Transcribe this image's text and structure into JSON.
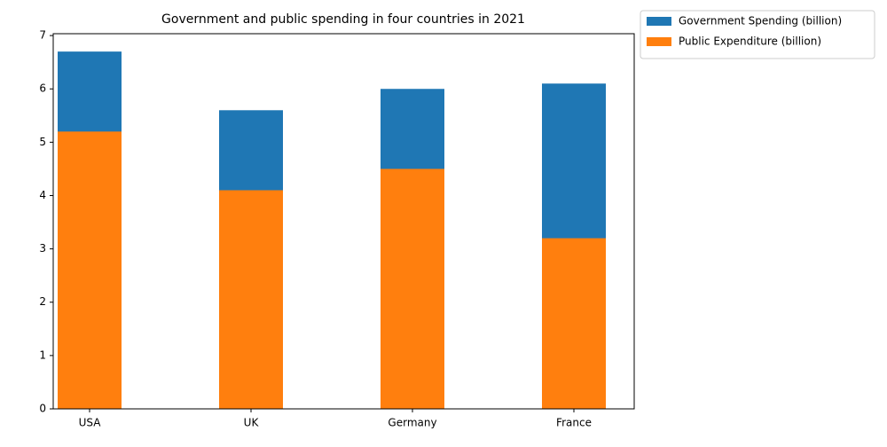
{
  "chart_data": {
    "type": "bar",
    "title": "Government and public spending in four countries in 2021",
    "categories": [
      "USA",
      "UK",
      "Germany",
      "France"
    ],
    "series": [
      {
        "name": "Government Spending (billion)",
        "color": "#1f77b4",
        "values": [
          6.7,
          5.6,
          6.0,
          6.1
        ]
      },
      {
        "name": "Public Expenditure (billion)",
        "color": "#ff7f0e",
        "values": [
          5.2,
          4.1,
          4.5,
          3.2
        ]
      }
    ],
    "ylim": [
      0,
      7.035
    ],
    "yticks": [
      0,
      1,
      2,
      3,
      4,
      5,
      6,
      7
    ],
    "grid": false,
    "legend": "outside-upper-right"
  }
}
